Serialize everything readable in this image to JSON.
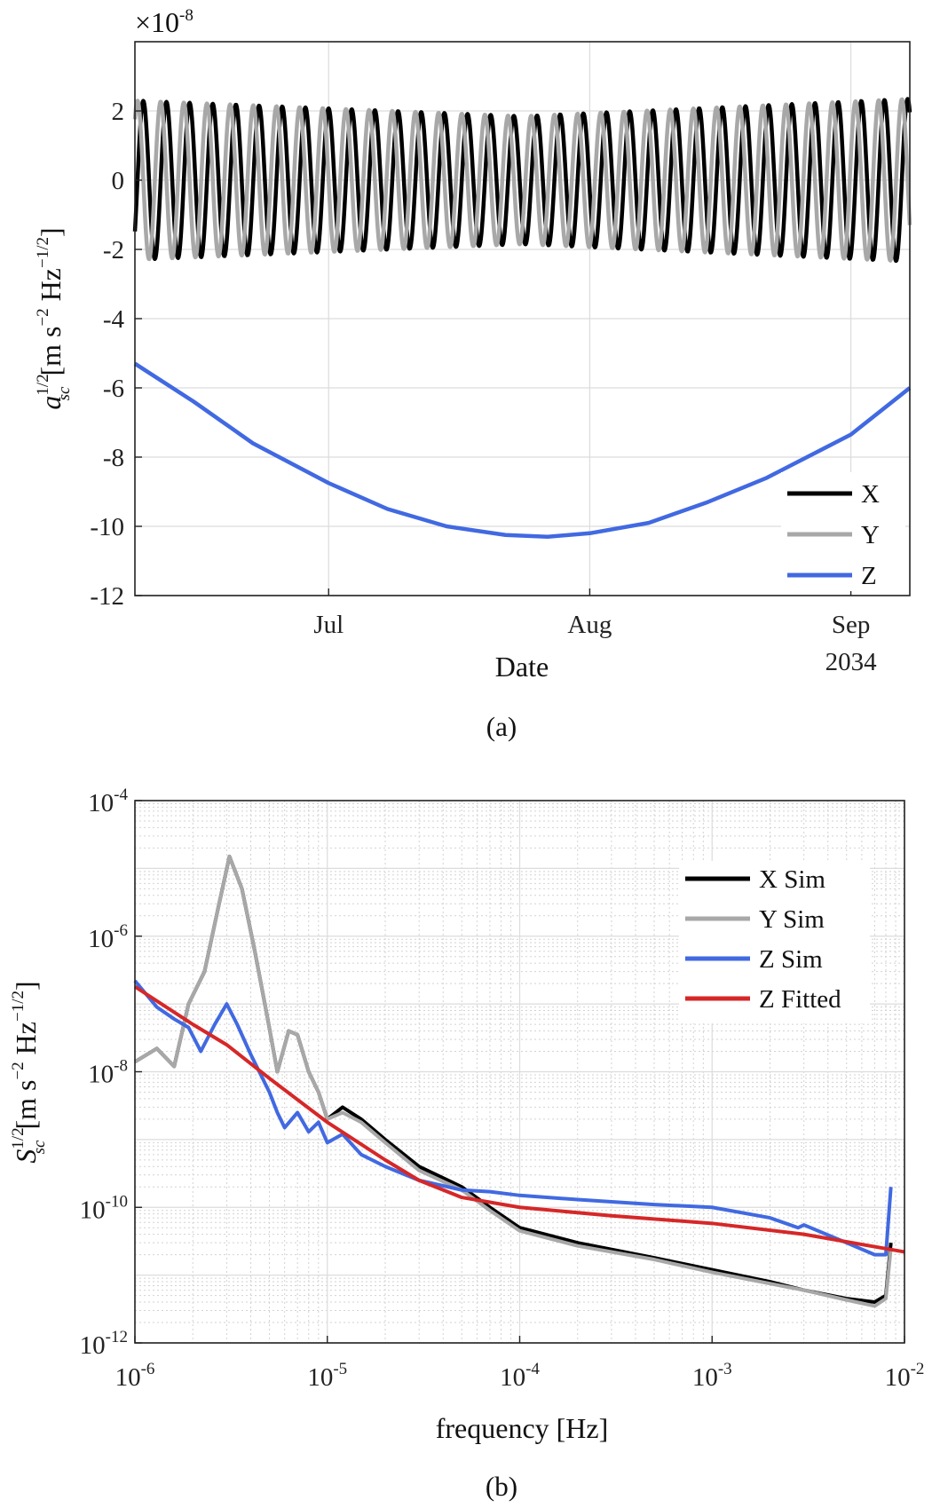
{
  "chart_data": [
    {
      "type": "line",
      "caption": "(a)",
      "exponent_label": "×10",
      "exponent_power": "-8",
      "xlabel": "Date",
      "ylabel_symbol": "a",
      "ylabel_sup": "1/2",
      "ylabel_sub": "sc",
      "ylabel_units": "[m s",
      "ylabel_units_sup1": "−2",
      "ylabel_units_mid": " Hz",
      "ylabel_units_sup2": "−1/2",
      "ylabel_units_end": "]",
      "x_ticks": [
        {
          "date": "2034-07-01",
          "label": "Jul",
          "sublabel": ""
        },
        {
          "date": "2034-08-01",
          "label": "Aug",
          "sublabel": ""
        },
        {
          "date": "2034-09-01",
          "label": "Sep",
          "sublabel": "2034"
        }
      ],
      "xlim": [
        "2034-06-08",
        "2034-09-08"
      ],
      "ylim": [
        -12,
        4
      ],
      "y_ticks": [
        {
          "value": 2,
          "label": "2"
        },
        {
          "value": 0,
          "label": "0"
        },
        {
          "value": -2,
          "label": "-2"
        },
        {
          "value": -4,
          "label": "-4"
        },
        {
          "value": -6,
          "label": "-6"
        },
        {
          "value": -8,
          "label": "-8"
        },
        {
          "value": -10,
          "label": "-10"
        },
        {
          "value": -12,
          "label": "-12"
        }
      ],
      "grid": true,
      "legend_position": "bottom-right",
      "series": [
        {
          "name": "X",
          "color": "#000000",
          "kind": "oscillation",
          "phase": "sin",
          "amplitude_envelope": [
            {
              "date": "2034-06-08",
              "value": 2.3
            },
            {
              "date": "2034-07-24",
              "value": 1.85
            },
            {
              "date": "2034-09-08",
              "value": 2.35
            }
          ],
          "period_days": 2.75
        },
        {
          "name": "Y",
          "color": "#a8a8a8",
          "kind": "oscillation",
          "phase": "cos",
          "amplitude_envelope": [
            {
              "date": "2034-06-08",
              "value": 2.3
            },
            {
              "date": "2034-07-24",
              "value": 1.85
            },
            {
              "date": "2034-09-08",
              "value": 2.35
            }
          ],
          "period_days": 2.75
        },
        {
          "name": "Z",
          "color": "#4169e1",
          "kind": "curve",
          "points": [
            {
              "date": "2034-06-08",
              "value": -5.3
            },
            {
              "date": "2034-06-15",
              "value": -6.4
            },
            {
              "date": "2034-06-22",
              "value": -7.6
            },
            {
              "date": "2034-07-01",
              "value": -8.75
            },
            {
              "date": "2034-07-08",
              "value": -9.5
            },
            {
              "date": "2034-07-15",
              "value": -10.0
            },
            {
              "date": "2034-07-22",
              "value": -10.25
            },
            {
              "date": "2034-07-27",
              "value": -10.3
            },
            {
              "date": "2034-08-01",
              "value": -10.2
            },
            {
              "date": "2034-08-08",
              "value": -9.9
            },
            {
              "date": "2034-08-15",
              "value": -9.3
            },
            {
              "date": "2034-08-22",
              "value": -8.6
            },
            {
              "date": "2034-09-01",
              "value": -7.35
            },
            {
              "date": "2034-09-08",
              "value": -6.0
            }
          ]
        }
      ]
    },
    {
      "type": "line",
      "caption": "(b)",
      "xlabel": "frequency [Hz]",
      "ylabel_symbol": "S",
      "ylabel_sup": "1/2",
      "ylabel_sub": "sc",
      "ylabel_units": "[m s",
      "ylabel_units_sup1": "−2",
      "ylabel_units_mid": " Hz",
      "ylabel_units_sup2": "−1/2",
      "ylabel_units_end": "]",
      "x_scale": "log",
      "y_scale": "log",
      "xlim": [
        1e-06,
        0.01
      ],
      "ylim": [
        1e-12,
        0.0001
      ],
      "x_ticks": [
        {
          "value": 1e-06,
          "base": "10",
          "power": "-6"
        },
        {
          "value": 1e-05,
          "base": "10",
          "power": "-5"
        },
        {
          "value": 0.0001,
          "base": "10",
          "power": "-4"
        },
        {
          "value": 0.001,
          "base": "10",
          "power": "-3"
        },
        {
          "value": 0.01,
          "base": "10",
          "power": "-2"
        }
      ],
      "y_ticks": [
        {
          "value": 0.0001,
          "base": "10",
          "power": "-4"
        },
        {
          "value": 1e-06,
          "base": "10",
          "power": "-6"
        },
        {
          "value": 1e-08,
          "base": "10",
          "power": "-8"
        },
        {
          "value": 1e-10,
          "base": "10",
          "power": "-10"
        },
        {
          "value": 1e-12,
          "base": "10",
          "power": "-12"
        }
      ],
      "grid": true,
      "minor_grid": true,
      "legend_position": "top-right",
      "series": [
        {
          "name": "X Sim",
          "color": "#000000",
          "points": [
            [
              1e-06,
              1.4e-08
            ],
            [
              1.3e-06,
              2.2e-08
            ],
            [
              1.6e-06,
              1.2e-08
            ],
            [
              1.9e-06,
              1e-07
            ],
            [
              2.3e-06,
              3e-07
            ],
            [
              2.7e-06,
              2.5e-06
            ],
            [
              3.1e-06,
              1.5e-05
            ],
            [
              3.6e-06,
              5e-06
            ],
            [
              4.2e-06,
              6e-07
            ],
            [
              4.9e-06,
              6e-08
            ],
            [
              5.5e-06,
              1e-08
            ],
            [
              6.3e-06,
              4e-08
            ],
            [
              7e-06,
              3.5e-08
            ],
            [
              8e-06,
              1e-08
            ],
            [
              9e-06,
              5e-09
            ],
            [
              1e-05,
              2e-09
            ],
            [
              1.2e-05,
              3e-09
            ],
            [
              1.5e-05,
              2e-09
            ],
            [
              2e-05,
              1e-09
            ],
            [
              3e-05,
              4e-10
            ],
            [
              5e-05,
              2e-10
            ],
            [
              7e-05,
              1e-10
            ],
            [
              0.0001,
              5e-11
            ],
            [
              0.0002,
              3e-11
            ],
            [
              0.0005,
              1.8e-11
            ],
            [
              0.001,
              1.2e-11
            ],
            [
              0.002,
              8e-12
            ],
            [
              0.003,
              6e-12
            ],
            [
              0.005,
              4.5e-12
            ],
            [
              0.007,
              4e-12
            ],
            [
              0.008,
              5e-12
            ],
            [
              0.0085,
              3e-11
            ]
          ]
        },
        {
          "name": "Y Sim",
          "color": "#a8a8a8",
          "points": [
            [
              1e-06,
              1.4e-08
            ],
            [
              1.3e-06,
              2.2e-08
            ],
            [
              1.6e-06,
              1.2e-08
            ],
            [
              1.9e-06,
              1e-07
            ],
            [
              2.3e-06,
              3e-07
            ],
            [
              2.7e-06,
              2.5e-06
            ],
            [
              3.1e-06,
              1.5e-05
            ],
            [
              3.6e-06,
              5e-06
            ],
            [
              4.2e-06,
              6e-07
            ],
            [
              4.9e-06,
              6e-08
            ],
            [
              5.5e-06,
              1e-08
            ],
            [
              6.3e-06,
              4e-08
            ],
            [
              7e-06,
              3.5e-08
            ],
            [
              8e-06,
              1e-08
            ],
            [
              9e-06,
              5e-09
            ],
            [
              1e-05,
              2e-09
            ],
            [
              1.2e-05,
              2.5e-09
            ],
            [
              1.5e-05,
              1.8e-09
            ],
            [
              2e-05,
              9e-10
            ],
            [
              3e-05,
              3.5e-10
            ],
            [
              5e-05,
              1.8e-10
            ],
            [
              7e-05,
              9e-11
            ],
            [
              0.0001,
              4.5e-11
            ],
            [
              0.0002,
              2.7e-11
            ],
            [
              0.0005,
              1.7e-11
            ],
            [
              0.001,
              1.1e-11
            ],
            [
              0.002,
              7.5e-12
            ],
            [
              0.003,
              6e-12
            ],
            [
              0.005,
              4.3e-12
            ],
            [
              0.007,
              3.5e-12
            ],
            [
              0.008,
              4.5e-12
            ],
            [
              0.0085,
              2.5e-11
            ]
          ]
        },
        {
          "name": "Z Sim",
          "color": "#4169e1",
          "points": [
            [
              1e-06,
              2.2e-07
            ],
            [
              1.3e-06,
              9e-08
            ],
            [
              1.6e-06,
              6e-08
            ],
            [
              1.9e-06,
              4.5e-08
            ],
            [
              2.2e-06,
              2e-08
            ],
            [
              2.6e-06,
              5e-08
            ],
            [
              3e-06,
              1e-07
            ],
            [
              3.4e-06,
              5e-08
            ],
            [
              4e-06,
              1.8e-08
            ],
            [
              5e-06,
              5e-09
            ],
            [
              5.5e-06,
              2.5e-09
            ],
            [
              6e-06,
              1.5e-09
            ],
            [
              7e-06,
              2.5e-09
            ],
            [
              8e-06,
              1.3e-09
            ],
            [
              9e-06,
              1.8e-09
            ],
            [
              1e-05,
              9e-10
            ],
            [
              1.2e-05,
              1.2e-09
            ],
            [
              1.5e-05,
              6e-10
            ],
            [
              2e-05,
              4e-10
            ],
            [
              3e-05,
              2.5e-10
            ],
            [
              5e-05,
              1.8e-10
            ],
            [
              7e-05,
              1.7e-10
            ],
            [
              0.0001,
              1.5e-10
            ],
            [
              0.0002,
              1.3e-10
            ],
            [
              0.0005,
              1.1e-10
            ],
            [
              0.001,
              1e-10
            ],
            [
              0.002,
              7e-11
            ],
            [
              0.0028,
              5e-11
            ],
            [
              0.003,
              5.5e-11
            ],
            [
              0.005,
              3e-11
            ],
            [
              0.007,
              2e-11
            ],
            [
              0.008,
              2e-11
            ],
            [
              0.0085,
              2e-10
            ]
          ]
        },
        {
          "name": "Z Fitted",
          "color": "#d62728",
          "points": [
            [
              1e-06,
              1.8e-07
            ],
            [
              2e-06,
              5e-08
            ],
            [
              3e-06,
              2.5e-08
            ],
            [
              5e-06,
              8e-09
            ],
            [
              1e-05,
              1.8e-09
            ],
            [
              2e-05,
              5e-10
            ],
            [
              3e-05,
              2.5e-10
            ],
            [
              5e-05,
              1.4e-10
            ],
            [
              0.0001,
              1e-10
            ],
            [
              0.0003,
              7.5e-11
            ],
            [
              0.001,
              5.8e-11
            ],
            [
              0.003,
              4e-11
            ],
            [
              0.01,
              2.2e-11
            ]
          ]
        }
      ]
    }
  ]
}
